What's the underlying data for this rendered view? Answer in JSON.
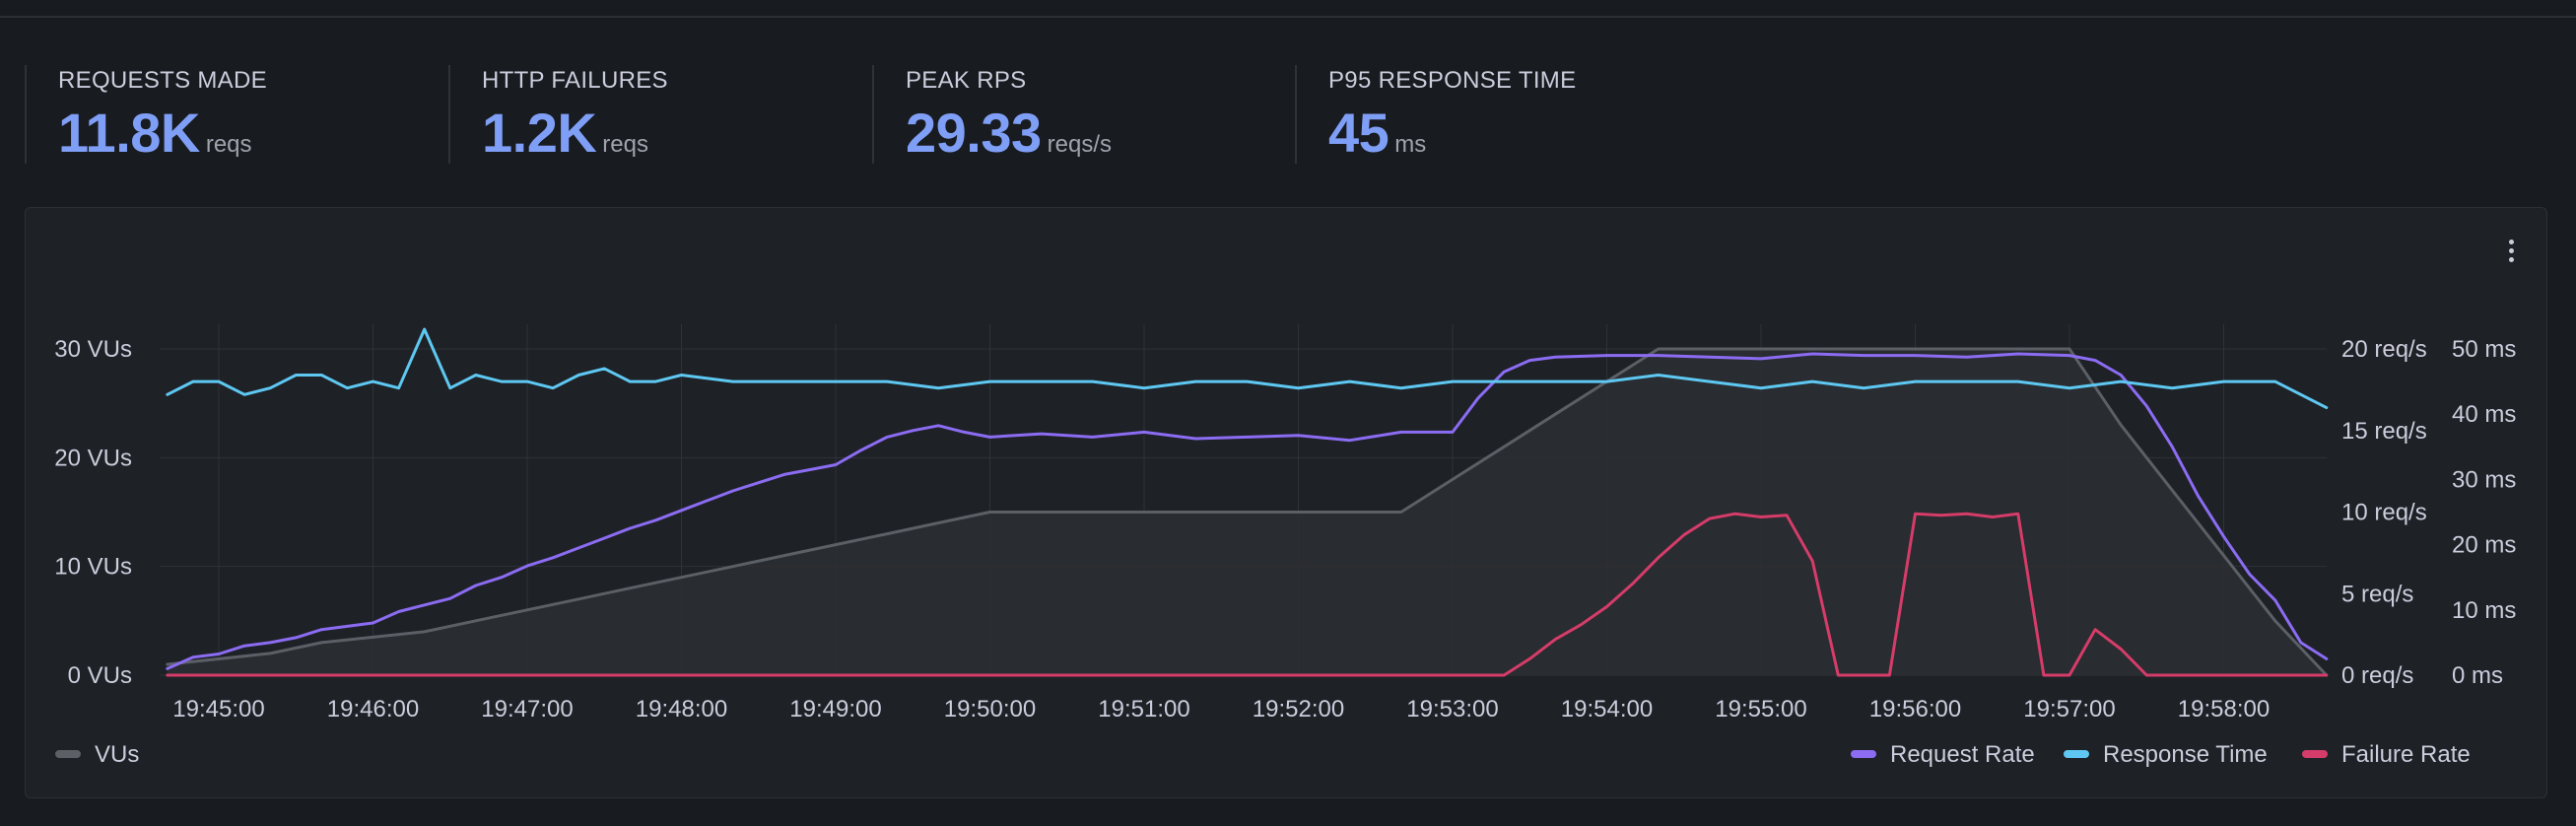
{
  "stats": [
    {
      "label": "REQUESTS MADE",
      "value": "11.8K",
      "unit": "reqs"
    },
    {
      "label": "HTTP FAILURES",
      "value": "1.2K",
      "unit": "reqs"
    },
    {
      "label": "PEAK RPS",
      "value": "29.33",
      "unit": "reqs/s"
    },
    {
      "label": "P95 RESPONSE TIME",
      "value": "45",
      "unit": "ms"
    }
  ],
  "colors": {
    "vus": "#5b5f66",
    "request_rate": "#8b6cf2",
    "response_time": "#5ec8f2",
    "failure_rate": "#d63c6a",
    "stat_value": "#7f9ef6"
  },
  "chart_data": {
    "type": "line",
    "grid": true,
    "legend_position": "bottom",
    "x_ticks": [
      "19:45:00",
      "19:46:00",
      "19:47:00",
      "19:48:00",
      "19:49:00",
      "19:50:00",
      "19:51:00",
      "19:52:00",
      "19:53:00",
      "19:54:00",
      "19:55:00",
      "19:56:00",
      "19:57:00",
      "19:58:00"
    ],
    "axes": {
      "vus": {
        "ticks": [
          "0 VUs",
          "10 VUs",
          "20 VUs",
          "30 VUs"
        ],
        "ylim": [
          0,
          30
        ]
      },
      "req_rate": {
        "ticks": [
          "0 req/s",
          "5 req/s",
          "10 req/s",
          "15 req/s",
          "20 req/s"
        ],
        "ylim": [
          0,
          20
        ]
      },
      "resp_time": {
        "ticks": [
          "0 ms",
          "10 ms",
          "20 ms",
          "30 ms",
          "40 ms",
          "50 ms"
        ],
        "ylim": [
          0,
          50
        ]
      }
    },
    "series": [
      {
        "key": "vus",
        "name": "VUs",
        "axis": "vus",
        "x": [
          "19:44:40",
          "19:45:20",
          "19:45:40",
          "19:46:20",
          "19:46:40",
          "19:47:00",
          "19:47:20",
          "19:47:40",
          "19:48:00",
          "19:48:20",
          "19:48:40",
          "19:49:00",
          "19:49:20",
          "19:49:40",
          "19:50:00",
          "19:50:20",
          "19:50:40",
          "19:51:00",
          "19:51:20",
          "19:51:40",
          "19:52:00",
          "19:52:20",
          "19:52:40",
          "19:53:00",
          "19:53:20",
          "19:53:40",
          "19:54:00",
          "19:54:20",
          "19:54:40",
          "19:55:00",
          "19:55:20",
          "19:55:40",
          "19:56:00",
          "19:56:20",
          "19:56:40",
          "19:57:00",
          "19:57:20",
          "19:57:40",
          "19:58:00",
          "19:58:20",
          "19:58:40"
        ],
        "values": [
          1,
          2,
          3,
          4,
          5,
          6,
          7,
          8,
          9,
          10,
          11,
          12,
          13,
          14,
          15,
          15,
          15,
          15,
          15,
          15,
          15,
          15,
          15,
          18,
          21,
          24,
          27,
          30,
          30,
          30,
          30,
          30,
          30,
          30,
          30,
          30,
          23,
          17,
          11,
          5,
          0
        ]
      },
      {
        "key": "request_rate",
        "name": "Request Rate",
        "axis": "req_rate",
        "x": [
          "19:44:40",
          "19:44:50",
          "19:45:00",
          "19:45:10",
          "19:45:20",
          "19:45:30",
          "19:45:40",
          "19:45:50",
          "19:46:00",
          "19:46:10",
          "19:46:20",
          "19:46:30",
          "19:46:40",
          "19:46:50",
          "19:47:00",
          "19:47:10",
          "19:47:20",
          "19:47:30",
          "19:47:40",
          "19:47:50",
          "19:48:00",
          "19:48:10",
          "19:48:20",
          "19:48:30",
          "19:48:40",
          "19:48:50",
          "19:49:00",
          "19:49:10",
          "19:49:20",
          "19:49:30",
          "19:49:40",
          "19:49:50",
          "19:50:00",
          "19:50:20",
          "19:50:40",
          "19:51:00",
          "19:51:20",
          "19:51:40",
          "19:52:00",
          "19:52:20",
          "19:52:40",
          "19:53:00",
          "19:53:10",
          "19:53:20",
          "19:53:30",
          "19:53:40",
          "19:54:00",
          "19:54:20",
          "19:54:40",
          "19:55:00",
          "19:55:20",
          "19:55:40",
          "19:56:00",
          "19:56:20",
          "19:56:40",
          "19:57:00",
          "19:57:10",
          "19:57:20",
          "19:57:30",
          "19:57:40",
          "19:57:50",
          "19:58:00",
          "19:58:10",
          "19:58:20",
          "19:58:30",
          "19:58:40"
        ],
        "values": [
          0.4,
          1.1,
          1.3,
          1.8,
          2.0,
          2.3,
          2.8,
          3.0,
          3.2,
          3.9,
          4.3,
          4.7,
          5.5,
          6.0,
          6.7,
          7.2,
          7.8,
          8.4,
          9.0,
          9.5,
          10.1,
          10.7,
          11.3,
          11.8,
          12.3,
          12.6,
          12.9,
          13.8,
          14.6,
          15.0,
          15.3,
          14.9,
          14.6,
          14.8,
          14.6,
          14.9,
          14.5,
          14.6,
          14.7,
          14.4,
          14.9,
          14.9,
          17.0,
          18.6,
          19.3,
          19.5,
          19.6,
          19.6,
          19.5,
          19.4,
          19.7,
          19.6,
          19.6,
          19.5,
          19.7,
          19.6,
          19.3,
          18.4,
          16.5,
          14.0,
          11.0,
          8.5,
          6.2,
          4.6,
          2.0,
          1.0
        ]
      },
      {
        "key": "response_time",
        "name": "Response Time",
        "axis": "resp_time",
        "x": [
          "19:44:40",
          "19:44:50",
          "19:45:00",
          "19:45:10",
          "19:45:20",
          "19:45:30",
          "19:45:40",
          "19:45:50",
          "19:46:00",
          "19:46:10",
          "19:46:20",
          "19:46:30",
          "19:46:40",
          "19:46:50",
          "19:47:00",
          "19:47:10",
          "19:47:20",
          "19:47:30",
          "19:47:40",
          "19:47:50",
          "19:48:00",
          "19:48:20",
          "19:48:40",
          "19:49:00",
          "19:49:20",
          "19:49:40",
          "19:50:00",
          "19:50:20",
          "19:50:40",
          "19:51:00",
          "19:51:20",
          "19:51:40",
          "19:52:00",
          "19:52:20",
          "19:52:40",
          "19:53:00",
          "19:53:20",
          "19:53:40",
          "19:54:00",
          "19:54:20",
          "19:54:40",
          "19:55:00",
          "19:55:20",
          "19:55:40",
          "19:56:00",
          "19:56:20",
          "19:56:40",
          "19:57:00",
          "19:57:20",
          "19:57:40",
          "19:58:00",
          "19:58:20",
          "19:58:40"
        ],
        "values": [
          43,
          45,
          45,
          43,
          44,
          46,
          46,
          44,
          45,
          44,
          53,
          44,
          46,
          45,
          45,
          44,
          46,
          47,
          45,
          45,
          46,
          45,
          45,
          45,
          45,
          44,
          45,
          45,
          45,
          44,
          45,
          45,
          44,
          45,
          44,
          45,
          45,
          45,
          45,
          46,
          45,
          44,
          45,
          44,
          45,
          45,
          45,
          44,
          45,
          44,
          45,
          45,
          41
        ]
      },
      {
        "key": "failure_rate",
        "name": "Failure Rate",
        "axis": "req_rate",
        "x": [
          "19:44:40",
          "19:53:20",
          "19:53:30",
          "19:53:40",
          "19:53:50",
          "19:54:00",
          "19:54:10",
          "19:54:20",
          "19:54:30",
          "19:54:40",
          "19:54:50",
          "19:55:00",
          "19:55:10",
          "19:55:20",
          "19:55:30",
          "19:55:40",
          "19:55:50",
          "19:56:00",
          "19:56:10",
          "19:56:20",
          "19:56:30",
          "19:56:40",
          "19:56:50",
          "19:57:00",
          "19:57:10",
          "19:57:20",
          "19:57:30",
          "19:58:40"
        ],
        "values": [
          0,
          0,
          1.0,
          2.2,
          3.1,
          4.2,
          5.6,
          7.2,
          8.6,
          9.6,
          9.9,
          9.7,
          9.8,
          7.0,
          0,
          0,
          0,
          9.9,
          9.8,
          9.9,
          9.7,
          9.9,
          0,
          0,
          2.8,
          1.6,
          0,
          0
        ]
      }
    ]
  }
}
